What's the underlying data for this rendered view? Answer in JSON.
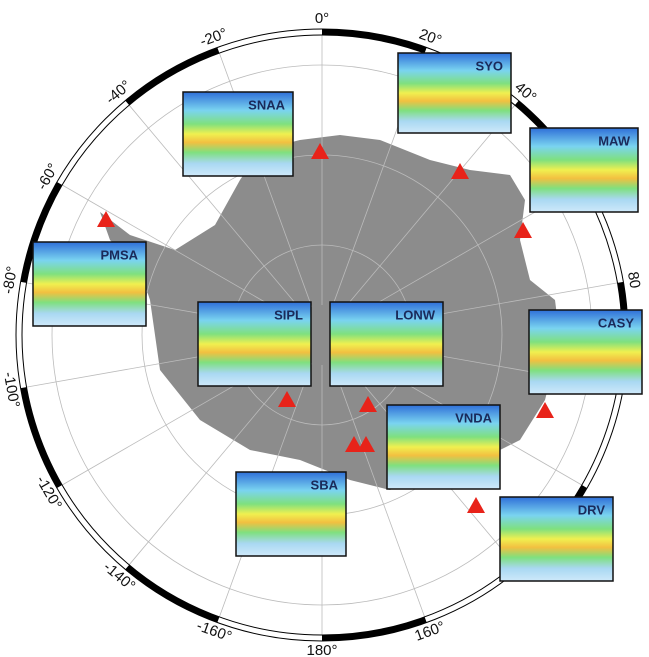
{
  "map": {
    "graticule_labels": [
      {
        "value": 0,
        "label": "0°"
      },
      {
        "value": 20,
        "label": "20°"
      },
      {
        "value": 40,
        "label": "40°"
      },
      80,
      {
        "value": 160,
        "label": "160°"
      },
      {
        "value": 180,
        "label": "180°"
      },
      {
        "value": -160,
        "label": "-160°"
      },
      {
        "value": -140,
        "label": "-140°"
      },
      {
        "value": -120,
        "label": "-120°"
      },
      {
        "value": -100,
        "label": "-100°"
      },
      {
        "value": -80,
        "label": "-80°"
      },
      {
        "value": -60,
        "label": "-60°"
      },
      {
        "value": -40,
        "label": "-40°"
      },
      {
        "value": -20,
        "label": "-20°"
      }
    ],
    "stations": [
      "SNAA",
      "SYO",
      "MAW",
      "PMSA",
      "SIPL",
      "LONW",
      "CASY",
      "VNDA",
      "SBA",
      "DRV"
    ]
  }
}
